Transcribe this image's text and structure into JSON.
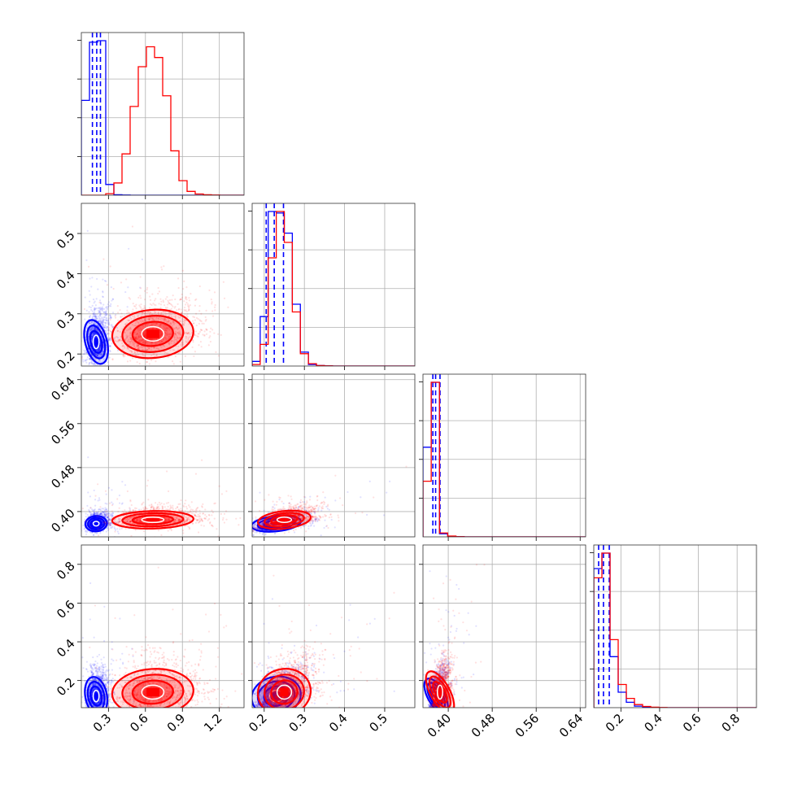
{
  "chart_data": {
    "type": "corner",
    "grid": true,
    "parameters": [
      {
        "range": [
          0.08,
          1.4
        ],
        "ticks": [
          0.3,
          0.6,
          0.9,
          1.2
        ],
        "tick_labels": [
          "0.3",
          "0.6",
          "0.9",
          "1.2"
        ]
      },
      {
        "range": [
          0.17,
          0.575
        ],
        "ticks": [
          0.2,
          0.3,
          0.4,
          0.5
        ],
        "tick_labels": [
          "0.2",
          "0.3",
          "0.4",
          "0.5"
        ]
      },
      {
        "range": [
          0.354,
          0.65
        ],
        "ticks": [
          0.4,
          0.48,
          0.56,
          0.64
        ],
        "tick_labels": [
          "0.40",
          "0.48",
          "0.56",
          "0.64"
        ]
      },
      {
        "range": [
          0.06,
          0.9
        ],
        "ticks": [
          0.2,
          0.4,
          0.6,
          0.8
        ],
        "tick_labels": [
          "0.2",
          "0.4",
          "0.6",
          "0.8"
        ]
      }
    ],
    "series": [
      {
        "color": "#0000ff",
        "means": [
          0.2,
          0.23,
          0.378,
          0.12
        ],
        "sds": [
          0.04,
          0.028,
          0.007,
          0.05
        ],
        "quantiles": [
          [
            0.17,
            0.205,
            0.235
          ],
          [
            0.205,
            0.225,
            0.248
          ],
          [
            0.372,
            0.377,
            0.385
          ],
          [
            0.085,
            0.11,
            0.14
          ]
        ],
        "histograms": [
          {
            "edges": [
              0.08,
              0.146,
              0.212,
              0.278,
              0.344,
              0.41,
              0.476,
              0.542,
              0.608,
              0.674,
              0.74,
              0.806,
              0.872,
              0.938,
              1.004,
              1.07,
              1.136,
              1.202,
              1.268,
              1.334,
              1.4
            ],
            "counts": [
              620,
              1000,
              1010,
              70,
              3,
              1,
              0,
              0,
              0,
              0,
              0,
              0,
              0,
              0,
              0,
              0,
              0,
              0,
              0,
              0
            ]
          },
          {
            "edges": [
              0.17,
              0.19,
              0.21,
              0.23,
              0.25,
              0.27,
              0.29,
              0.31,
              0.33,
              0.35,
              0.37,
              0.39,
              0.41,
              0.43,
              0.45,
              0.47,
              0.49,
              0.51,
              0.53,
              0.55,
              0.575
            ],
            "counts": [
              30,
              320,
              1000,
              990,
              860,
              400,
              90,
              10,
              3,
              1,
              0,
              0,
              0,
              0,
              0,
              0,
              0,
              0,
              0,
              0
            ]
          },
          {
            "edges": [
              0.354,
              0.369,
              0.384,
              0.399,
              0.414,
              0.429,
              0.444,
              0.459,
              0.474,
              0.489,
              0.504,
              0.519,
              0.534,
              0.549,
              0.564,
              0.579,
              0.594,
              0.609,
              0.624,
              0.639,
              0.65
            ],
            "counts": [
              580,
              1000,
              20,
              3,
              1,
              0,
              0,
              0,
              0,
              0,
              0,
              0,
              0,
              0,
              0,
              0,
              0,
              0,
              0,
              0
            ]
          },
          {
            "edges": [
              0.06,
              0.102,
              0.144,
              0.186,
              0.228,
              0.27,
              0.312,
              0.354,
              0.396,
              0.438,
              0.48,
              0.522,
              0.564,
              0.606,
              0.648,
              0.69,
              0.732,
              0.774,
              0.816,
              0.858,
              0.9
            ],
            "counts": [
              900,
              1000,
              330,
              100,
              35,
              10,
              3,
              1,
              0,
              0,
              0,
              0,
              0,
              0,
              0,
              0,
              0,
              0,
              0,
              0
            ]
          }
        ]
      },
      {
        "color": "#ff0000",
        "means": [
          0.66,
          0.25,
          0.385,
          0.14
        ],
        "sds": [
          0.15,
          0.03,
          0.008,
          0.06
        ],
        "quantiles": [],
        "histograms": [
          {
            "edges": [
              0.08,
              0.146,
              0.212,
              0.278,
              0.344,
              0.41,
              0.476,
              0.542,
              0.608,
              0.674,
              0.74,
              0.806,
              0.872,
              0.938,
              1.004,
              1.07,
              1.136,
              1.202,
              1.268,
              1.334,
              1.4
            ],
            "counts": [
              0,
              0,
              0,
              10,
              80,
              270,
              580,
              840,
              970,
              900,
              650,
              290,
              95,
              25,
              8,
              3,
              1,
              0,
              0,
              0
            ]
          },
          {
            "edges": [
              0.17,
              0.19,
              0.21,
              0.23,
              0.25,
              0.27,
              0.29,
              0.31,
              0.33,
              0.35,
              0.37,
              0.39,
              0.41,
              0.43,
              0.45,
              0.47,
              0.49,
              0.51,
              0.53,
              0.55,
              0.575
            ],
            "counts": [
              10,
              140,
              700,
              1000,
              800,
              350,
              80,
              15,
              3,
              1,
              0,
              0,
              0,
              0,
              0,
              0,
              0,
              0,
              0,
              0
            ]
          },
          {
            "edges": [
              0.354,
              0.369,
              0.384,
              0.399,
              0.414,
              0.429,
              0.444,
              0.459,
              0.474,
              0.489,
              0.504,
              0.519,
              0.534,
              0.549,
              0.564,
              0.579,
              0.594,
              0.609,
              0.624,
              0.639,
              0.65
            ],
            "counts": [
              360,
              1000,
              25,
              5,
              1,
              0,
              0,
              0,
              0,
              0,
              0,
              0,
              0,
              0,
              0,
              0,
              0,
              0,
              0,
              0
            ]
          },
          {
            "edges": [
              0.06,
              0.102,
              0.144,
              0.186,
              0.228,
              0.27,
              0.312,
              0.354,
              0.396,
              0.438,
              0.48,
              0.522,
              0.564,
              0.606,
              0.648,
              0.69,
              0.732,
              0.774,
              0.816,
              0.858,
              0.9
            ],
            "counts": [
              840,
              1000,
              440,
              150,
              60,
              20,
              8,
              3,
              1,
              0,
              0,
              0,
              0,
              0,
              0,
              0,
              0,
              0,
              0,
              0
            ]
          }
        ]
      }
    ]
  }
}
